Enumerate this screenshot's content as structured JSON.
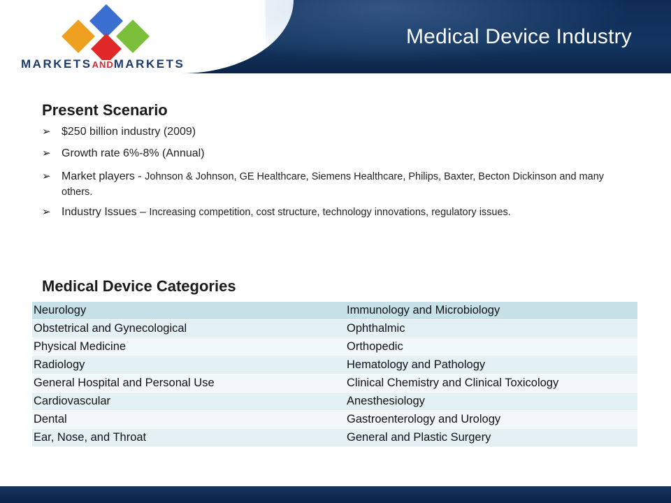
{
  "header": {
    "title": "Medical Device Industry",
    "logo_text": {
      "left": "MARKETS",
      "mid": "AND",
      "right": "MARKETS"
    },
    "colors": {
      "band": "#0f2c57",
      "logo_blue": "#3a6fd0",
      "logo_orange": "#f0a020",
      "logo_red": "#e02828",
      "logo_green": "#7bbf3a"
    }
  },
  "present_scenario": {
    "heading": "Present Scenario",
    "bullets": [
      {
        "main": "$250 billion industry (2009)",
        "detail": ""
      },
      {
        "main": "Growth rate 6%-8% (Annual)",
        "detail": ""
      },
      {
        "main": "Market players - ",
        "detail": "Johnson & Johnson, GE Healthcare, Siemens Healthcare, Philips, Baxter, Becton Dickinson and many others."
      },
      {
        "main": "Industry Issues – ",
        "detail": "Increasing competition, cost structure, technology innovations,  regulatory issues."
      }
    ]
  },
  "categories": {
    "heading": "Medical Device Categories",
    "rows": [
      [
        "Neurology",
        "Immunology and Microbiology"
      ],
      [
        "Obstetrical and Gynecological",
        "Ophthalmic"
      ],
      [
        "Physical Medicine",
        "Orthopedic"
      ],
      [
        "Radiology",
        "Hematology and Pathology"
      ],
      [
        "General Hospital and Personal Use",
        "Clinical Chemistry and Clinical Toxicology"
      ],
      [
        "Cardiovascular",
        "Anesthesiology"
      ],
      [
        "Dental",
        "Gastroenterology and Urology"
      ],
      [
        "Ear, Nose, and Throat",
        "General  and Plastic Surgery"
      ]
    ]
  }
}
